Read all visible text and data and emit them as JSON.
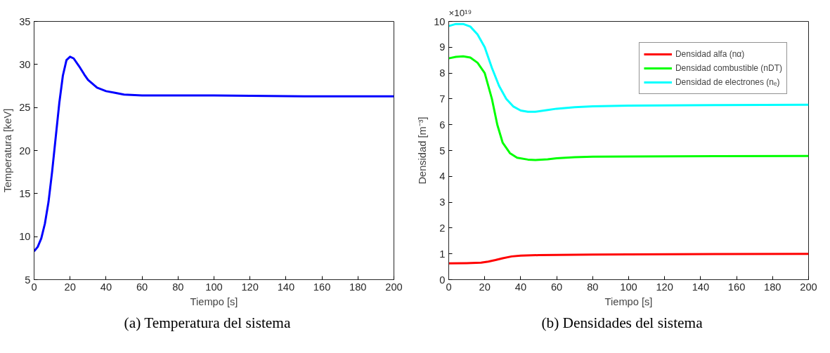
{
  "chart_data": [
    {
      "type": "line",
      "xlabel": "Tiempo [s]",
      "ylabel": "Temperatura [keV]",
      "annotations": [
        "(a) Temperatura del sistema"
      ],
      "x": [
        0,
        2,
        4,
        6,
        8,
        10,
        12,
        14,
        16,
        18,
        20,
        22,
        25,
        28,
        30,
        35,
        40,
        45,
        50,
        60,
        80,
        100,
        150,
        200
      ],
      "series": [
        {
          "color": "#0000ff",
          "values": [
            8.3,
            8.8,
            9.8,
            11.5,
            14,
            17.5,
            21.5,
            25.5,
            28.7,
            30.5,
            30.9,
            30.7,
            29.8,
            28.8,
            28.2,
            27.3,
            26.9,
            26.7,
            26.5,
            26.4,
            26.4,
            26.4,
            26.3,
            26.3
          ]
        }
      ],
      "xlim": [
        0,
        200
      ],
      "xticks": [
        0,
        20,
        40,
        60,
        80,
        100,
        120,
        140,
        160,
        180,
        200
      ],
      "ylim": [
        5,
        35
      ],
      "yticks": [
        5,
        10,
        15,
        20,
        25,
        30,
        35
      ],
      "grid": false,
      "legend": false
    },
    {
      "type": "line",
      "xlabel": "Tiempo [s]",
      "ylabel": "Densidad [m⁻³]",
      "annotations": [
        "×10¹⁹",
        "(b) Densidades del sistema"
      ],
      "series": [
        {
          "name": "Densidad alfa (nα)",
          "color": "#ff0000",
          "x": [
            0,
            10,
            18,
            22,
            26,
            30,
            35,
            40,
            50,
            60,
            80,
            100,
            150,
            200
          ],
          "values": [
            0.63,
            0.64,
            0.66,
            0.7,
            0.76,
            0.83,
            0.9,
            0.93,
            0.95,
            0.96,
            0.97,
            0.98,
            0.99,
            1.0
          ]
        },
        {
          "name": "Densidad combustible (nDT)",
          "color": "#00ff00",
          "x": [
            0,
            4,
            8,
            12,
            16,
            20,
            24,
            27,
            30,
            34,
            38,
            44,
            48,
            55,
            60,
            70,
            80,
            100,
            150,
            200
          ],
          "values": [
            8.57,
            8.63,
            8.65,
            8.6,
            8.4,
            8.0,
            7.0,
            6.0,
            5.3,
            4.9,
            4.72,
            4.65,
            4.63,
            4.66,
            4.7,
            4.74,
            4.76,
            4.77,
            4.78,
            4.79
          ]
        },
        {
          "name": "Densidad de electrones (nₑ)",
          "color": "#00ffff",
          "x": [
            0,
            4,
            8,
            12,
            16,
            20,
            24,
            28,
            32,
            36,
            40,
            44,
            48,
            55,
            60,
            70,
            80,
            100,
            150,
            200
          ],
          "values": [
            9.82,
            9.9,
            9.9,
            9.8,
            9.5,
            9.0,
            8.2,
            7.5,
            7.0,
            6.7,
            6.55,
            6.5,
            6.5,
            6.57,
            6.62,
            6.68,
            6.71,
            6.74,
            6.76,
            6.77
          ]
        }
      ],
      "xlim": [
        0,
        200
      ],
      "xticks": [
        0,
        20,
        40,
        60,
        80,
        100,
        120,
        140,
        160,
        180,
        200
      ],
      "ylim": [
        0,
        10
      ],
      "yticks": [
        0,
        1,
        2,
        3,
        4,
        5,
        6,
        7,
        8,
        9,
        10
      ],
      "grid": false,
      "legend": "top right"
    }
  ]
}
